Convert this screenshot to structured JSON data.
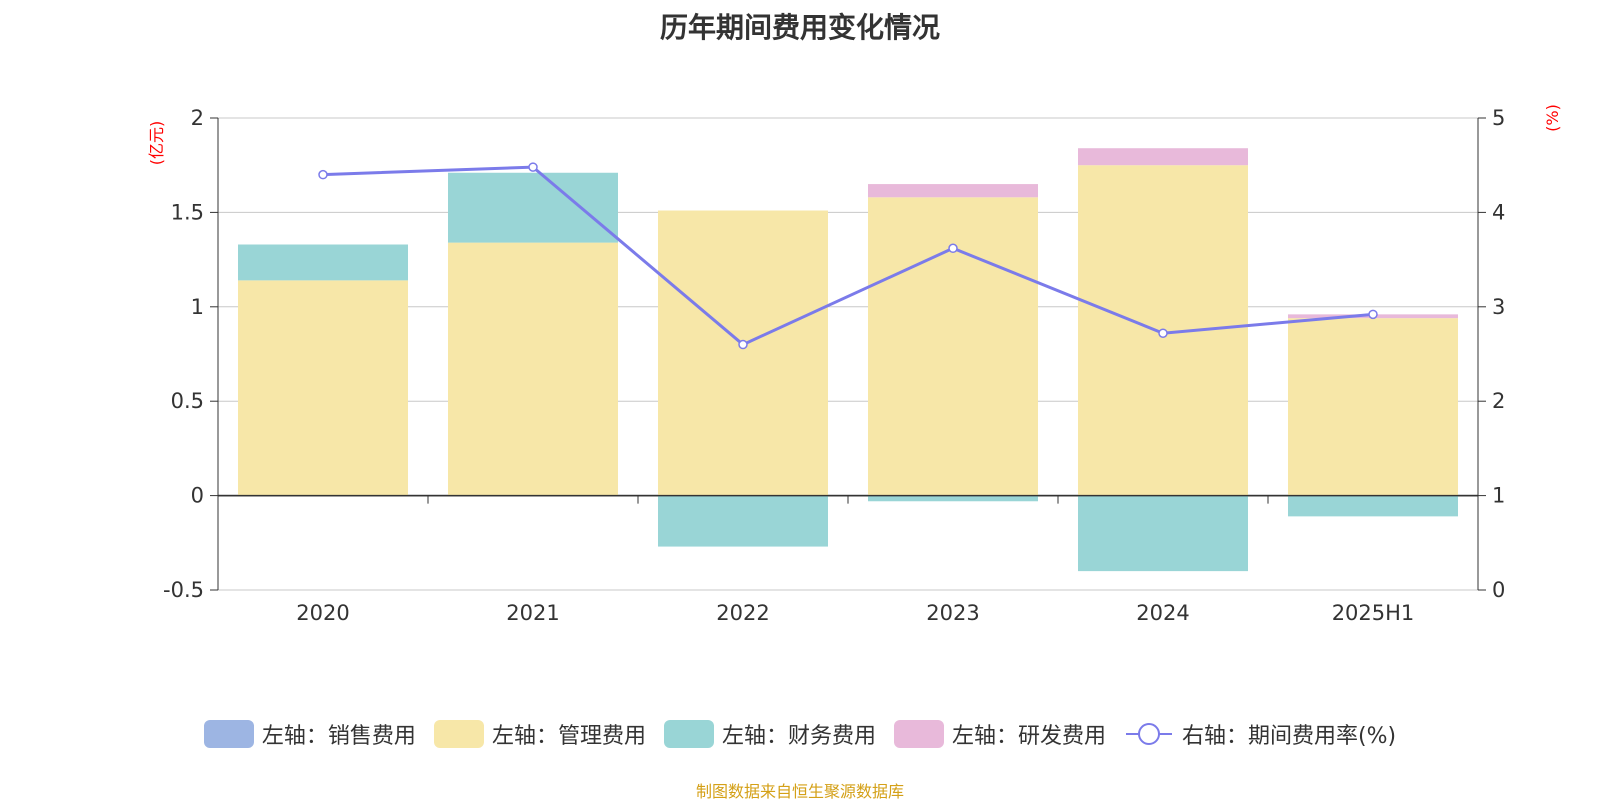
{
  "chart_data": {
    "type": "bar",
    "title": "历年期间费用变化情况",
    "categories": [
      "2020",
      "2021",
      "2022",
      "2023",
      "2024",
      "2025H1"
    ],
    "series": [
      {
        "name": "左轴：销售费用",
        "axis": "left",
        "kind": "bar",
        "color": "#9db5e3",
        "values": [
          0,
          0,
          0,
          0,
          0,
          0
        ]
      },
      {
        "name": "左轴：管理费用",
        "axis": "left",
        "kind": "bar",
        "color": "#f7e7a8",
        "values": [
          1.14,
          1.34,
          1.51,
          1.58,
          1.75,
          0.94
        ]
      },
      {
        "name": "左轴：财务费用",
        "axis": "left",
        "kind": "bar",
        "color": "#99d5d6",
        "values": [
          0.19,
          0.37,
          -0.27,
          -0.03,
          -0.4,
          -0.11
        ]
      },
      {
        "name": "左轴：研发费用",
        "axis": "left",
        "kind": "bar",
        "color": "#e8b9da",
        "values": [
          0,
          0,
          0,
          0.07,
          0.09,
          0.02
        ]
      },
      {
        "name": "右轴：期间费用率(%)",
        "axis": "right",
        "kind": "line",
        "color": "#7b7bea",
        "values": [
          4.4,
          4.48,
          2.6,
          3.62,
          2.72,
          2.92
        ]
      }
    ],
    "left_axis": {
      "unit": "(亿元)",
      "ylim": [
        -0.5,
        2
      ],
      "ticks": [
        "-0.5",
        "0",
        "0.5",
        "1",
        "1.5",
        "2"
      ],
      "tick_values": [
        -0.5,
        0,
        0.5,
        1,
        1.5,
        2
      ]
    },
    "right_axis": {
      "unit": "(%)",
      "ylim": [
        0,
        5
      ],
      "ticks": [
        "0",
        "1",
        "2",
        "3",
        "4",
        "5"
      ],
      "tick_values": [
        0,
        1,
        2,
        3,
        4,
        5
      ]
    },
    "grid": true,
    "legend_position": "bottom"
  },
  "source_note": "制图数据来自恒生聚源数据库"
}
